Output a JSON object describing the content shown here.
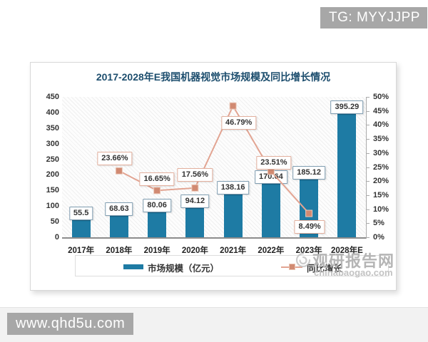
{
  "page": {
    "top_badge": "TG: MYYJJPP",
    "bottom_badge": "www.qhd5u.com",
    "watermark": {
      "site_name": "观研报告网",
      "site_url": "chinabaogao.com"
    }
  },
  "chart_data": {
    "type": "combo",
    "title": "2017-2028年E我国机器视觉市场规模及同比增长情况",
    "title_color": "#1d4e6e",
    "categories": [
      "2017年",
      "2018年",
      "2019年",
      "2020年",
      "2021年",
      "2022年",
      "2023年",
      "2028年E"
    ],
    "series": [
      {
        "name": "市场规模（亿元）",
        "type": "bar",
        "color": "#1e7ba4",
        "values": [
          55.5,
          68.63,
          80.06,
          94.12,
          138.16,
          170.64,
          185.12,
          395.29
        ],
        "labels": [
          "55.5",
          "68.63",
          "80.06",
          "94.12",
          "138.16",
          "170.64",
          "185.12",
          "395.29"
        ]
      },
      {
        "name": "同比增长",
        "type": "line",
        "color": "#e2a492",
        "marker_color": "#d18a72",
        "values": [
          null,
          23.66,
          16.65,
          17.56,
          46.79,
          23.51,
          8.49,
          null
        ],
        "labels": [
          null,
          "23.66%",
          "16.65%",
          "17.56%",
          "46.79%",
          "23.51%",
          "8.49%",
          null
        ]
      }
    ],
    "left_axis": {
      "min": 0,
      "max": 450,
      "step": 50
    },
    "right_axis": {
      "min": 0,
      "max": 50,
      "step": 5,
      "suffix": "%"
    },
    "legend_position": "bottom",
    "grid": false
  }
}
